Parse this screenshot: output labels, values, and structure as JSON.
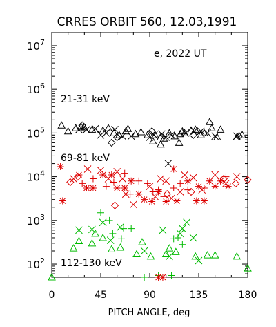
{
  "chart_data": {
    "type": "scatter",
    "title": "CRRES ORBIT 560, 12.03,1991",
    "annotation": "e, 2022 UT",
    "xlabel": "PITCH ANGLE, deg",
    "ylabel": "",
    "xlim": [
      0,
      180
    ],
    "ylim_log10": [
      1.7,
      7.3
    ],
    "y_scale": "log",
    "x_ticks": [
      0,
      45,
      90,
      135,
      180
    ],
    "y_tick_exponents": [
      2,
      3,
      4,
      5,
      6,
      7
    ],
    "y_tick_base": "10",
    "energy_labels": [
      {
        "text": "21-31 keV",
        "color": "#000000"
      },
      {
        "text": "69-81 keV",
        "color": "#000000"
      },
      {
        "text": "112-130 keV",
        "color": "#000000"
      }
    ],
    "series": [
      {
        "color": "#000000",
        "marker": "triangle",
        "points": [
          [
            9,
            150000
          ],
          [
            15,
            110000
          ],
          [
            22,
            130000
          ],
          [
            27,
            140000
          ],
          [
            30,
            135000
          ],
          [
            37,
            120000
          ],
          [
            47,
            115000
          ],
          [
            52,
            130000
          ],
          [
            57,
            100000
          ],
          [
            62,
            90000
          ],
          [
            68,
            110000
          ],
          [
            70,
            125000
          ],
          [
            77,
            95000
          ],
          [
            82,
            105000
          ],
          [
            88,
            90000
          ],
          [
            93,
            65000
          ],
          [
            95,
            90000
          ],
          [
            100,
            80000
          ],
          [
            103,
            75000
          ],
          [
            108,
            100000
          ],
          [
            113,
            85000
          ],
          [
            117,
            60000
          ],
          [
            118,
            95000
          ],
          [
            122,
            100000
          ],
          [
            128,
            115000
          ],
          [
            132,
            120000
          ],
          [
            137,
            90000
          ],
          [
            140,
            100000
          ],
          [
            145,
            180000
          ],
          [
            147,
            130000
          ],
          [
            152,
            80000
          ],
          [
            155,
            120000
          ],
          [
            170,
            80000
          ],
          [
            175,
            90000
          ],
          [
            100,
            55000
          ],
          [
            120,
            110000
          ]
        ]
      },
      {
        "color": "#000000",
        "marker": "x",
        "points": [
          [
            25,
            120000
          ],
          [
            32,
            120000
          ],
          [
            40,
            125000
          ],
          [
            45,
            90000
          ],
          [
            50,
            100000
          ],
          [
            58,
            120000
          ],
          [
            65,
            85000
          ],
          [
            73,
            85000
          ],
          [
            90,
            80000
          ],
          [
            94,
            90000
          ],
          [
            101,
            95000
          ],
          [
            105,
            80000
          ],
          [
            107,
            20000
          ],
          [
            110,
            90000
          ],
          [
            123,
            100000
          ],
          [
            131,
            110000
          ],
          [
            137,
            110000
          ],
          [
            143,
            100000
          ],
          [
            150,
            85000
          ],
          [
            170,
            85000
          ]
        ]
      },
      {
        "color": "#000000",
        "marker": "diamond",
        "points": [
          [
            28,
            150000
          ],
          [
            55,
            60000
          ],
          [
            60,
            80000
          ],
          [
            92,
            110000
          ],
          [
            130,
            90000
          ],
          [
            172,
            85000
          ]
        ]
      },
      {
        "color": "#dd0000",
        "marker": "asterisk",
        "points": [
          [
            8,
            17000
          ],
          [
            10,
            2800
          ],
          [
            25,
            11000
          ],
          [
            32,
            5500
          ],
          [
            38,
            5500
          ],
          [
            47,
            11000
          ],
          [
            55,
            11000
          ],
          [
            60,
            5500
          ],
          [
            67,
            5500
          ],
          [
            73,
            8000
          ],
          [
            80,
            4000
          ],
          [
            85,
            3000
          ],
          [
            92,
            2700
          ],
          [
            98,
            4500
          ],
          [
            105,
            2700
          ],
          [
            112,
            15000
          ],
          [
            115,
            2800
          ],
          [
            125,
            8000
          ],
          [
            133,
            2800
          ],
          [
            135,
            6000
          ],
          [
            140,
            2800
          ],
          [
            145,
            8000
          ],
          [
            150,
            6000
          ],
          [
            155,
            8000
          ],
          [
            162,
            6000
          ]
        ]
      },
      {
        "color": "#dd0000",
        "marker": "x",
        "points": [
          [
            20,
            9000
          ],
          [
            33,
            15000
          ],
          [
            45,
            14000
          ],
          [
            52,
            9000
          ],
          [
            60,
            13000
          ],
          [
            65,
            9000
          ],
          [
            68,
            4000
          ],
          [
            75,
            2300
          ],
          [
            90,
            6000
          ],
          [
            95,
            3500
          ],
          [
            100,
            9000
          ],
          [
            105,
            8000
          ],
          [
            110,
            3200
          ],
          [
            118,
            4500
          ],
          [
            122,
            11000
          ],
          [
            130,
            9500
          ],
          [
            138,
            5000
          ],
          [
            150,
            11000
          ],
          [
            160,
            7000
          ],
          [
            170,
            10000
          ]
        ]
      },
      {
        "color": "#dd0000",
        "marker": "plus",
        "points": [
          [
            28,
            7000
          ],
          [
            38,
            9000
          ],
          [
            50,
            6000
          ],
          [
            57,
            7500
          ],
          [
            67,
            12000
          ],
          [
            72,
            4000
          ],
          [
            80,
            8000
          ],
          [
            88,
            7000
          ],
          [
            93,
            4500
          ],
          [
            98,
            5000
          ],
          [
            103,
            3500
          ],
          [
            112,
            5500
          ],
          [
            118,
            7000
          ],
          [
            125,
            5000
          ],
          [
            140,
            5500
          ],
          [
            160,
            10000
          ]
        ]
      },
      {
        "color": "#dd0000",
        "marker": "diamond",
        "points": [
          [
            17,
            7500
          ],
          [
            24,
            10000
          ],
          [
            58,
            2200
          ],
          [
            106,
            4000
          ],
          [
            128,
            4500
          ],
          [
            158,
            9000
          ],
          [
            169,
            7000
          ],
          [
            180,
            8500
          ]
        ]
      },
      {
        "color": "#00bb00",
        "marker": "triangle",
        "points": [
          [
            0,
            50
          ],
          [
            20,
            230
          ],
          [
            25,
            340
          ],
          [
            37,
            300
          ],
          [
            40,
            500
          ],
          [
            47,
            400
          ],
          [
            55,
            220
          ],
          [
            63,
            240
          ],
          [
            78,
            170
          ],
          [
            83,
            320
          ],
          [
            91,
            150
          ],
          [
            105,
            170
          ],
          [
            108,
            230
          ],
          [
            114,
            190
          ],
          [
            132,
            150
          ],
          [
            143,
            160
          ],
          [
            150,
            160
          ],
          [
            170,
            150
          ],
          [
            180,
            80
          ]
        ]
      },
      {
        "color": "#00bb00",
        "marker": "x",
        "points": [
          [
            25,
            600
          ],
          [
            37,
            620
          ],
          [
            47,
            900
          ],
          [
            54,
            350
          ],
          [
            63,
            700
          ],
          [
            85,
            200
          ],
          [
            102,
            600
          ],
          [
            108,
            150
          ],
          [
            118,
            500
          ],
          [
            120,
            650
          ],
          [
            124,
            900
          ],
          [
            130,
            400
          ],
          [
            135,
            120
          ]
        ]
      },
      {
        "color": "#00bb00",
        "marker": "plus",
        "points": [
          [
            45,
            1500
          ],
          [
            53,
            1000
          ],
          [
            56,
            500
          ],
          [
            66,
            650
          ],
          [
            64,
            380
          ],
          [
            73,
            650
          ],
          [
            85,
            50
          ],
          [
            98,
            55
          ],
          [
            110,
            55
          ],
          [
            112,
            380
          ],
          [
            116,
            400
          ],
          [
            120,
            280
          ]
        ]
      },
      {
        "color": "#dd0000",
        "marker": "asterisk",
        "points": [
          [
            98,
            50
          ],
          [
            102,
            50
          ]
        ]
      }
    ]
  }
}
